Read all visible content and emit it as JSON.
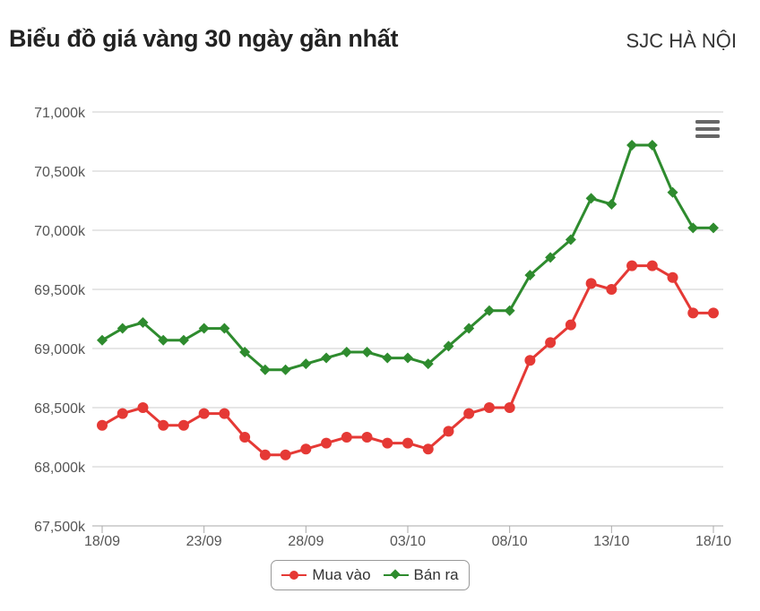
{
  "header": {
    "title": "Biểu đồ giá vàng 30 ngày gần nhất",
    "location": "SJC HÀ NỘI"
  },
  "menu": {
    "icon": "hamburger-menu-icon"
  },
  "colors": {
    "buy": "#e53935",
    "sell": "#2e8b2e",
    "grid": "#cccccc",
    "axis_text": "#555555"
  },
  "chart_data": {
    "type": "line",
    "title": "Biểu đồ giá vàng 30 ngày gần nhất",
    "xlabel": "",
    "ylabel": "",
    "x_start_date": "2023-09-18",
    "categories": [
      "18/09",
      "19/09",
      "20/09",
      "21/09",
      "22/09",
      "23/09",
      "24/09",
      "25/09",
      "26/09",
      "27/09",
      "28/09",
      "29/09",
      "30/09",
      "01/10",
      "02/10",
      "03/10",
      "04/10",
      "05/10",
      "06/10",
      "07/10",
      "08/10",
      "09/10",
      "10/10",
      "11/10",
      "12/10",
      "13/10",
      "14/10",
      "15/10",
      "16/10",
      "17/10",
      "18/10"
    ],
    "x_tick_labels": [
      "18/09",
      "23/09",
      "28/09",
      "03/10",
      "08/10",
      "13/10",
      "18/10"
    ],
    "y_ticks": [
      67500,
      68000,
      68500,
      69000,
      69500,
      70000,
      70500,
      71000
    ],
    "y_tick_labels": [
      "67,500k",
      "68,000k",
      "68,500k",
      "69,000k",
      "69,500k",
      "70,000k",
      "70,500k",
      "71,000k"
    ],
    "ylim": [
      67500,
      71000
    ],
    "grid": true,
    "legend_position": "bottom",
    "series": [
      {
        "name": "Mua vào",
        "marker": "circle",
        "values": [
          68350,
          68450,
          68500,
          68350,
          68350,
          68450,
          68450,
          68250,
          68100,
          68100,
          68150,
          68200,
          68250,
          68250,
          68200,
          68200,
          68150,
          68300,
          68450,
          68500,
          68500,
          68900,
          69050,
          69200,
          69550,
          69500,
          69700,
          69700,
          69600,
          69300,
          69300
        ]
      },
      {
        "name": "Bán ra",
        "marker": "diamond",
        "values": [
          69070,
          69170,
          69220,
          69070,
          69070,
          69170,
          69170,
          68970,
          68820,
          68820,
          68870,
          68920,
          68970,
          68970,
          68920,
          68920,
          68870,
          69020,
          69170,
          69320,
          69320,
          69620,
          69770,
          69920,
          70270,
          70220,
          70720,
          70720,
          70320,
          70020,
          70020
        ]
      }
    ]
  }
}
